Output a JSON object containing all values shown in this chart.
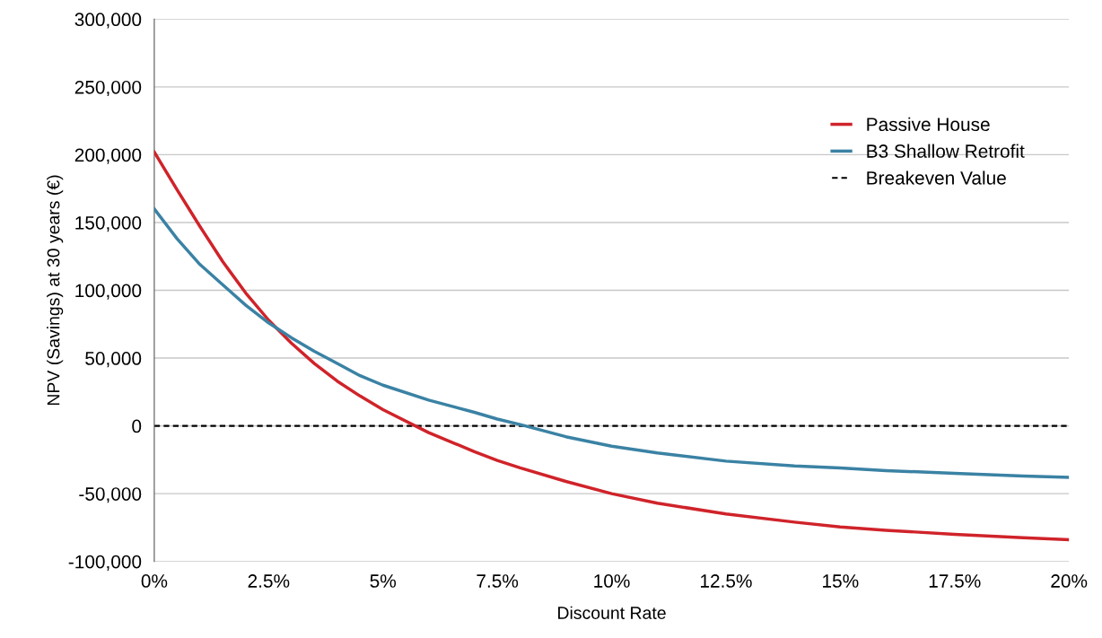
{
  "chart_data": {
    "type": "line",
    "xlabel": "Discount Rate",
    "ylabel": "NPV (Savings) at 30 years (€)",
    "xlim": [
      0,
      20
    ],
    "ylim": [
      -100000,
      300000
    ],
    "xticks": [
      {
        "value": 0,
        "label": "0%"
      },
      {
        "value": 2.5,
        "label": "2.5%"
      },
      {
        "value": 5,
        "label": "5%"
      },
      {
        "value": 7.5,
        "label": "7.5%"
      },
      {
        "value": 10,
        "label": "10%"
      },
      {
        "value": 12.5,
        "label": "12.5%"
      },
      {
        "value": 15,
        "label": "15%"
      },
      {
        "value": 17.5,
        "label": "17.5%"
      },
      {
        "value": 20,
        "label": "20%"
      }
    ],
    "yticks": [
      {
        "value": -100000,
        "label": "-100,000"
      },
      {
        "value": -50000,
        "label": "-50,000"
      },
      {
        "value": 0,
        "label": "0"
      },
      {
        "value": 50000,
        "label": "50,000"
      },
      {
        "value": 100000,
        "label": "100,000"
      },
      {
        "value": 150000,
        "label": "150,000"
      },
      {
        "value": 200000,
        "label": "200,000"
      },
      {
        "value": 250000,
        "label": "250,000"
      },
      {
        "value": 300000,
        "label": "300,000"
      }
    ],
    "x": [
      0,
      0.5,
      1,
      1.5,
      2,
      2.5,
      3,
      3.5,
      4,
      4.5,
      5,
      6,
      7,
      7.5,
      8,
      9,
      10,
      11,
      12.5,
      14,
      15,
      16,
      17.5,
      19,
      20
    ],
    "series": [
      {
        "name": "Passive House",
        "color": "#d0232a",
        "values": [
          202000,
          174000,
          147000,
          121000,
          98000,
          78000,
          61000,
          46000,
          33000,
          22000,
          12000,
          -5000,
          -19000,
          -25500,
          -31000,
          -41000,
          -50000,
          -57000,
          -65000,
          -71000,
          -74500,
          -77000,
          -80000,
          -82500,
          -84000
        ]
      },
      {
        "name": "B3 Shallow Retrofit",
        "color": "#3a82a4",
        "values": [
          160000,
          138000,
          119000,
          104000,
          89000,
          76000,
          65000,
          55000,
          46000,
          37000,
          30000,
          19000,
          10000,
          5000,
          1000,
          -8000,
          -15000,
          -20000,
          -26000,
          -29500,
          -31000,
          -33000,
          -35000,
          -37000,
          -38000
        ]
      }
    ],
    "ref_lines": [
      {
        "axis": "y",
        "value": 0,
        "label": "Breakeven Value",
        "color": "#000000",
        "line_style": "dashed"
      }
    ],
    "grid": "y",
    "legend": "top right",
    "marker": "none",
    "line_style": "solid"
  }
}
